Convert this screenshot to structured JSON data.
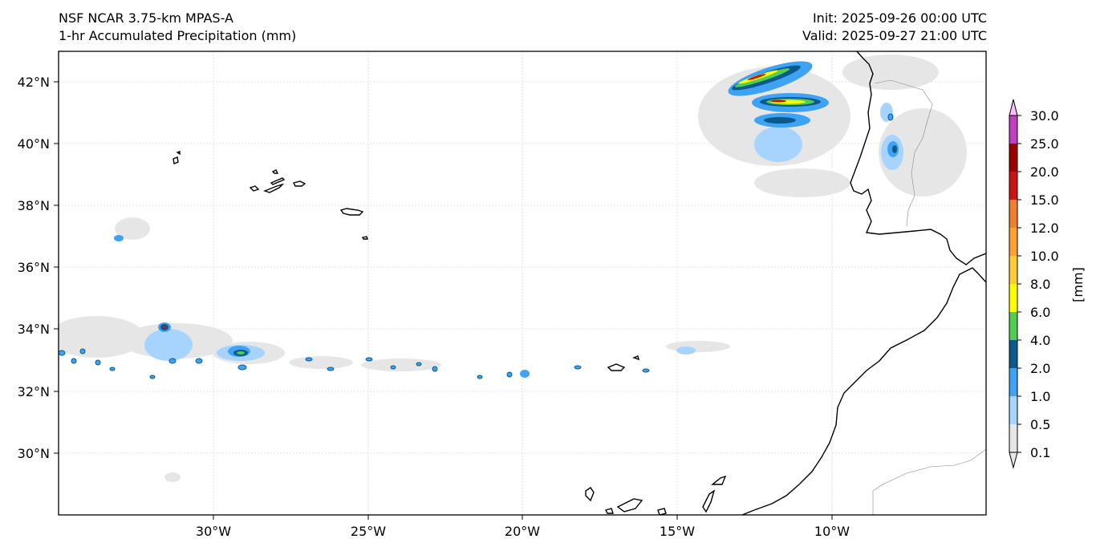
{
  "header": {
    "model": "NSF NCAR 3.75-km MPAS-A",
    "field": "1-hr Accumulated Precipitation (mm)",
    "init": "Init: 2025-09-26 00:00 UTC",
    "valid": "Valid: 2025-09-27 21:00 UTC"
  },
  "map": {
    "lon_range": [
      -35,
      -5
    ],
    "lat_range": [
      28,
      43
    ],
    "lat_ticks": [
      {
        "value": 42,
        "label": "42°N"
      },
      {
        "value": 40,
        "label": "40°N"
      },
      {
        "value": 38,
        "label": "38°N"
      },
      {
        "value": 36,
        "label": "36°N"
      },
      {
        "value": 34,
        "label": "34°N"
      },
      {
        "value": 32,
        "label": "32°N"
      },
      {
        "value": 30,
        "label": "30°N"
      }
    ],
    "lon_ticks": [
      {
        "value": -30,
        "label": "30°W"
      },
      {
        "value": -25,
        "label": "25°W"
      },
      {
        "value": -20,
        "label": "20°W"
      },
      {
        "value": -15,
        "label": "15°W"
      },
      {
        "value": -10,
        "label": "10°W"
      }
    ],
    "gridlines": true
  },
  "colorbar": {
    "unit_label": "[mm]",
    "levels": [
      "0.1",
      "0.5",
      "1.0",
      "2.0",
      "4.0",
      "6.0",
      "8.0",
      "10.0",
      "12.0",
      "15.0",
      "20.0",
      "25.0",
      "30.0"
    ],
    "colors": [
      "#e6e6e6",
      "#a6d4ff",
      "#3ea2f5",
      "#0a5a8c",
      "#52cc52",
      "#ffff00",
      "#ffcc33",
      "#ffa033",
      "#f07f2e",
      "#cc1414",
      "#990000",
      "#c040c0",
      "#ffbcff"
    ]
  }
}
